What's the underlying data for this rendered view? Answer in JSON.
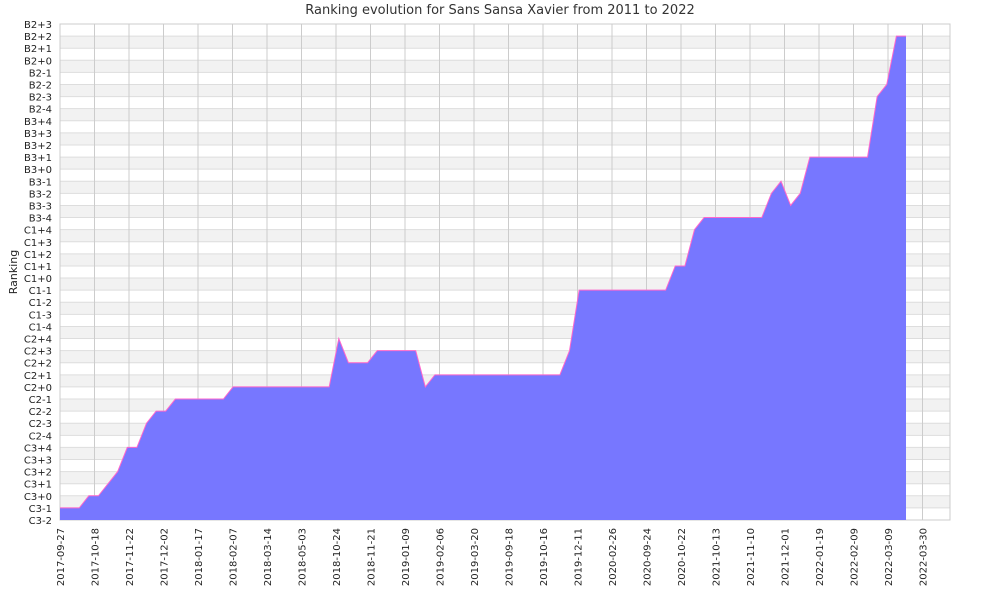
{
  "chart_data": {
    "type": "area",
    "title": "Ranking evolution for Sans Sansa Xavier from 2011 to 2022",
    "ylabel": "Ranking",
    "xlabel": "",
    "grid": true,
    "colors": {
      "fill": "#7777ff",
      "stroke": "#ff66cc",
      "band": "#f2f2f2",
      "grid": "#cccccc"
    },
    "y_categories": [
      "C3-2",
      "C3-1",
      "C3+0",
      "C3+1",
      "C3+2",
      "C3+3",
      "C3+4",
      "C2-4",
      "C2-3",
      "C2-2",
      "C2-1",
      "C2+0",
      "C2+1",
      "C2+2",
      "C2+3",
      "C2+4",
      "C1-4",
      "C1-3",
      "C1-2",
      "C1-1",
      "C1+0",
      "C1+1",
      "C1+2",
      "C1+3",
      "C1+4",
      "B3-4",
      "B3-3",
      "B3-2",
      "B3-1",
      "B3+0",
      "B3+1",
      "B3+2",
      "B3+3",
      "B3+4",
      "B2-4",
      "B2-3",
      "B2-2",
      "B2-1",
      "B2+0",
      "B2+1",
      "B2+2",
      "B2+3"
    ],
    "x_ticks": [
      "2017-09-27",
      "2017-10-18",
      "2017-11-22",
      "2017-12-02",
      "2018-01-17",
      "2018-02-07",
      "2018-03-14",
      "2018-05-03",
      "2018-10-24",
      "2018-11-21",
      "2019-01-09",
      "2019-02-06",
      "2019-03-20",
      "2019-09-18",
      "2019-10-16",
      "2019-12-11",
      "2020-02-26",
      "2020-09-24",
      "2020-10-22",
      "2021-10-13",
      "2021-11-10",
      "2021-12-01",
      "2022-01-19",
      "2022-02-09",
      "2022-03-09",
      "2022-03-30"
    ],
    "series": [
      {
        "values": [
          "C3-1",
          "C3-1",
          "C3-1",
          "C3+0",
          "C3+0",
          "C3+1",
          "C3+2",
          "C3+4",
          "C3+4",
          "C2-3",
          "C2-2",
          "C2-2",
          "C2-1",
          "C2-1",
          "C2-1",
          "C2-1",
          "C2-1",
          "C2-1",
          "C2+0",
          "C2+0",
          "C2+0",
          "C2+0",
          "C2+0",
          "C2+0",
          "C2+0",
          "C2+0",
          "C2+0",
          "C2+0",
          "C2+0",
          "C2+4",
          "C2+2",
          "C2+2",
          "C2+2",
          "C2+3",
          "C2+3",
          "C2+3",
          "C2+3",
          "C2+3",
          "C2+0",
          "C2+1",
          "C2+1",
          "C2+1",
          "C2+1",
          "C2+1",
          "C2+1",
          "C2+1",
          "C2+1",
          "C2+1",
          "C2+1",
          "C2+1",
          "C2+1",
          "C2+1",
          "C2+1",
          "C2+3",
          "C1-1",
          "C1-1",
          "C1-1",
          "C1-1",
          "C1-1",
          "C1-1",
          "C1-1",
          "C1-1",
          "C1-1",
          "C1-1",
          "C1+1",
          "C1+1",
          "C1+4",
          "B3-4",
          "B3-4",
          "B3-4",
          "B3-4",
          "B3-4",
          "B3-4",
          "B3-4",
          "B3-2",
          "B3-1",
          "B3-3",
          "B3-2",
          "B3+1",
          "B3+1",
          "B3+1",
          "B3+1",
          "B3+1",
          "B3+1",
          "B3+1",
          "B2-3",
          "B2-2",
          "B2+2",
          "B2+2"
        ]
      }
    ]
  }
}
